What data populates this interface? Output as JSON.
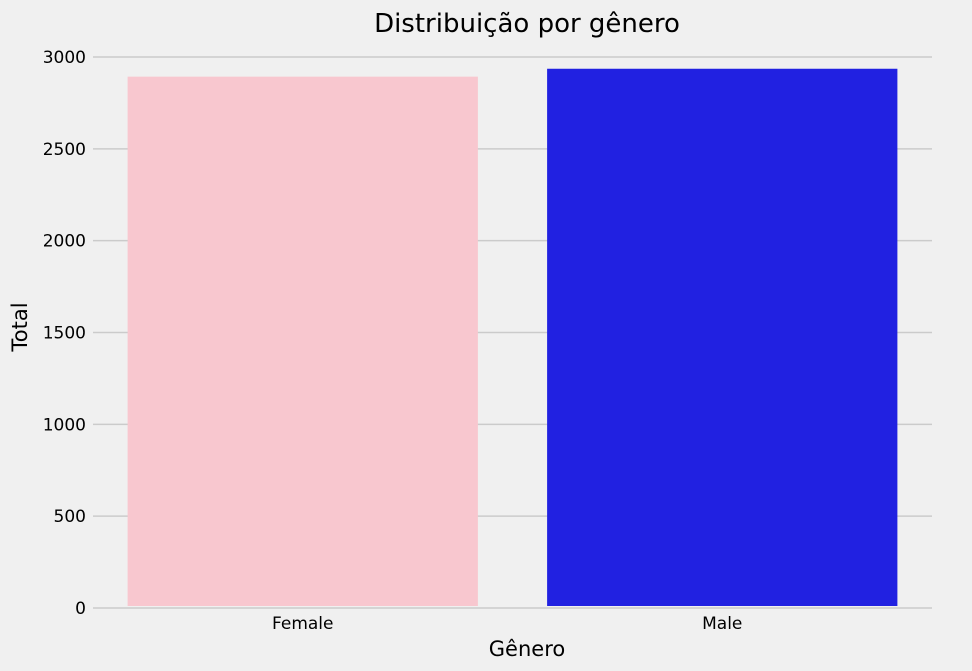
{
  "chart_data": {
    "type": "bar",
    "title": "Distribuição por gênero",
    "xlabel": "Gênero",
    "ylabel": "Total",
    "categories": [
      "Female",
      "Male"
    ],
    "values": [
      2893,
      2936
    ],
    "colors": [
      "#f8c7cf",
      "#2121e1"
    ],
    "ylim": [
      0,
      3000
    ],
    "yticks": [
      0,
      500,
      1000,
      1500,
      2000,
      2500,
      3000
    ],
    "grid": true,
    "grid_axis": "y",
    "background": "#f0f0f0"
  }
}
